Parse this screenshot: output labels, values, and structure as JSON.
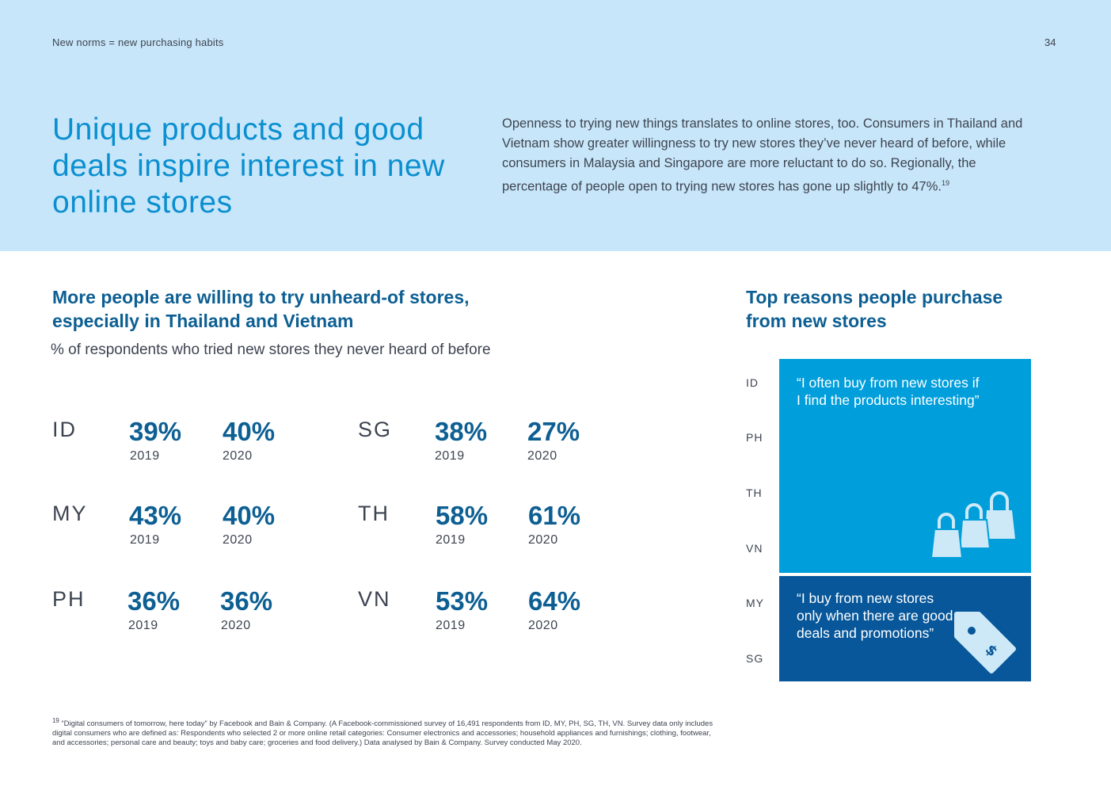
{
  "header": {
    "section_label": "New norms = new purchasing habits",
    "page_number": "34",
    "title": "Unique products and good deals inspire interest in new online stores",
    "intro": "Openness to trying new things translates to online stores, too. Consumers in Thailand and Vietnam show greater willingness to try new stores they’ve never heard of before, while consumers in Malaysia and Singapore are more reluctant to do so. Regionally, the percentage of people open to trying new stores has gone up slightly to 47%.",
    "intro_footnote_ref": "19"
  },
  "chart_data": {
    "type": "table",
    "title": "More people are willing to try unheard-of stores, especially in Thailand and Vietnam",
    "subtitle": "% of respondents who tried new stores they never heard of before",
    "columns": [
      "2019",
      "2020"
    ],
    "rows": [
      {
        "country": "ID",
        "v2019": "39%",
        "v2020": "40%"
      },
      {
        "country": "MY",
        "v2019": "43%",
        "v2020": "40%"
      },
      {
        "country": "PH",
        "v2019": "36%",
        "v2020": "36%"
      },
      {
        "country": "SG",
        "v2019": "38%",
        "v2020": "27%"
      },
      {
        "country": "TH",
        "v2019": "58%",
        "v2020": "61%"
      },
      {
        "country": "VN",
        "v2019": "53%",
        "v2020": "64%"
      }
    ]
  },
  "reasons": {
    "title": "Top reasons people purchase from new stores",
    "labels": [
      "ID",
      "PH",
      "TH",
      "VN",
      "MY",
      "SG"
    ],
    "products_quote": "“I often buy from new stores if I find the products interesting”",
    "deals_quote": "“I buy from new stores only when there are good deals and promotions”",
    "products_color": "#009edb",
    "deals_color": "#07579a",
    "products_icon": "shopping-bags-icon",
    "deals_icon": "price-tag-icon"
  },
  "footnote": {
    "number": "19",
    "text": "“Digital consumers of tomorrow, here today” by Facebook and Bain & Company. (A Facebook-commissioned survey of 16,491 respondents from ID, MY, PH, SG, TH, VN. Survey data only includes digital consumers who are defined as: Respondents who selected 2 or more online retail categories: Consumer electronics and accessories; household appliances and furnishings; clothing, footwear, and accessories; personal care and beauty; toys and baby care; groceries and food delivery.) Data analysed by Bain & Company. Survey conducted May 2020."
  }
}
